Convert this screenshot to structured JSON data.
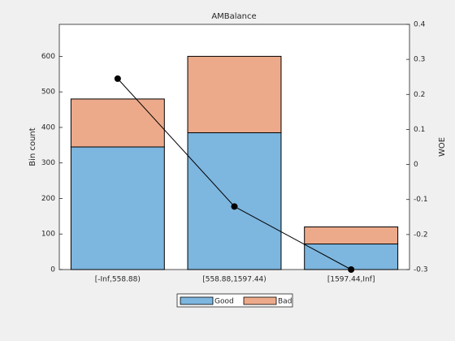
{
  "chart_data": {
    "type": "bar",
    "stacked": true,
    "title": "AMBalance",
    "y_label": "Bin count",
    "y2_label": "WOE",
    "categories": [
      "[-Inf,558.88)",
      "[558.88,1597.44)",
      "[1597.44,Inf]"
    ],
    "series": [
      {
        "name": "Good",
        "color": "#7db6df",
        "values": [
          345,
          385,
          72
        ]
      },
      {
        "name": "Bad",
        "color": "#edaa8b",
        "values": [
          135,
          215,
          48
        ]
      }
    ],
    "line_series": {
      "type": "line",
      "axis": "y2",
      "color": "#000000",
      "values": [
        0.245,
        -0.12,
        -0.3
      ]
    },
    "ylim": [
      0,
      690
    ],
    "yticks": [
      0,
      100,
      200,
      300,
      400,
      500,
      600
    ],
    "y2lim": [
      -0.3,
      0.4
    ],
    "y2ticks": [
      -0.3,
      -0.2,
      -0.1,
      0,
      0.1,
      0.2,
      0.3,
      0.4
    ],
    "legend": "bottom"
  }
}
